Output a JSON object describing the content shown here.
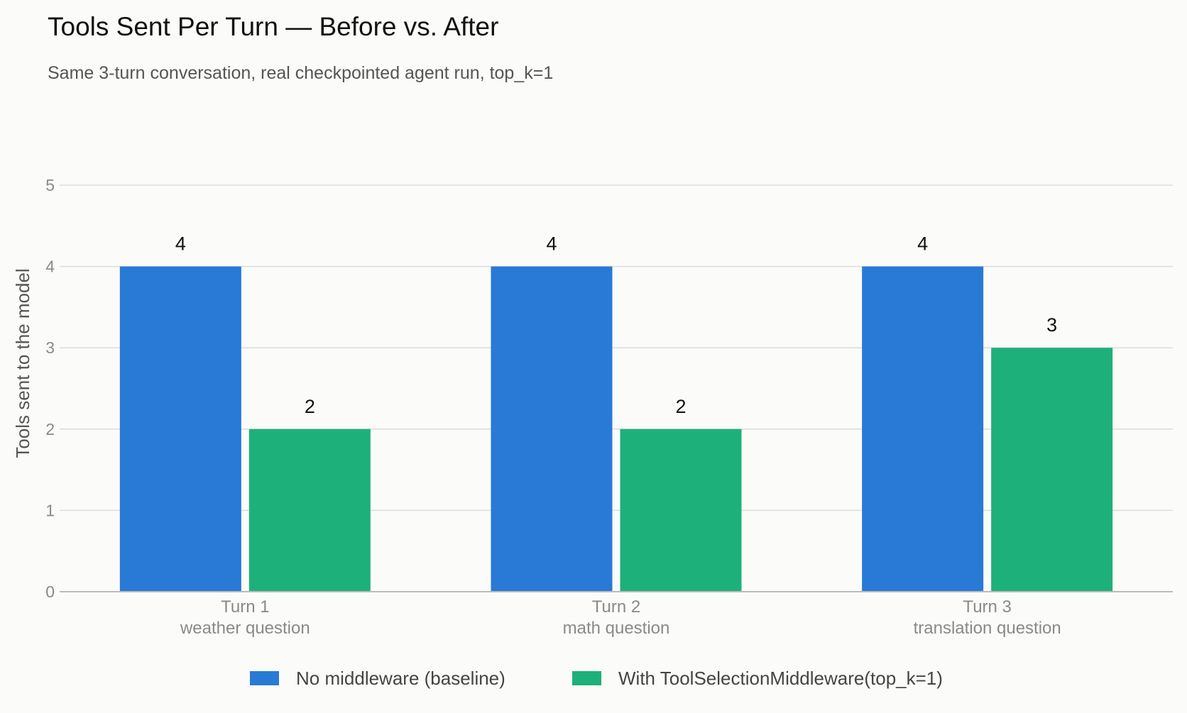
{
  "chart_data": {
    "type": "bar",
    "title": "Tools Sent Per Turn — Before vs. After",
    "subtitle": "Same 3-turn conversation, real checkpointed agent run, top_k=1",
    "ylabel": "Tools sent to the model",
    "xlabel": "",
    "ylim": [
      0,
      5
    ],
    "yticks": [
      "0",
      "1",
      "2",
      "3",
      "4",
      "5"
    ],
    "grid": true,
    "legend_position": "bottom",
    "categories": [
      {
        "line1": "Turn 1",
        "line2": "weather question"
      },
      {
        "line1": "Turn 2",
        "line2": "math question"
      },
      {
        "line1": "Turn 3",
        "line2": "translation question"
      }
    ],
    "series": [
      {
        "name": "No middleware (baseline)",
        "color": "#2979d6",
        "values": [
          4,
          4,
          4
        ]
      },
      {
        "name": "With ToolSelectionMiddleware(top_k=1)",
        "color": "#1db07a",
        "values": [
          2,
          2,
          3
        ]
      }
    ]
  }
}
